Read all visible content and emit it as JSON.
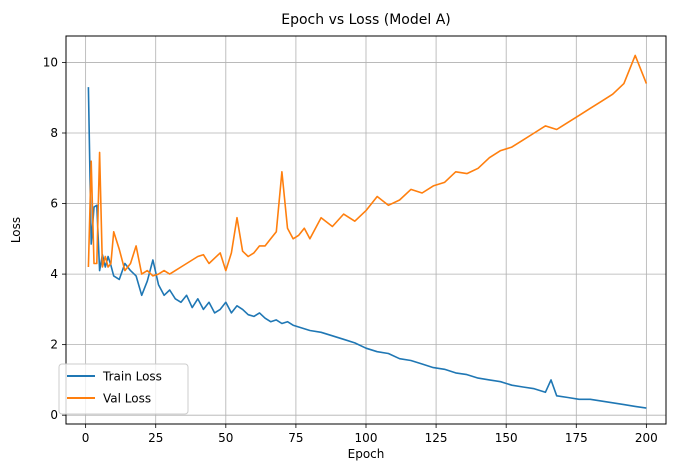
{
  "chart_data": {
    "type": "line",
    "title": "Epoch vs Loss (Model A)",
    "xlabel": "Epoch",
    "ylabel": "Loss",
    "xlim": [
      -7,
      207
    ],
    "ylim": [
      -0.25,
      10.75
    ],
    "xticks": [
      0,
      25,
      50,
      75,
      100,
      125,
      150,
      175,
      200
    ],
    "yticks": [
      0,
      2,
      4,
      6,
      8,
      10
    ],
    "grid": true,
    "legend_position": "lower-left",
    "series": [
      {
        "name": "Train Loss",
        "color": "#1f77b4",
        "x": [
          1,
          2,
          3,
          4,
          5,
          6,
          7,
          8,
          9,
          10,
          12,
          14,
          16,
          18,
          20,
          22,
          24,
          26,
          28,
          30,
          32,
          34,
          36,
          38,
          40,
          42,
          44,
          46,
          48,
          50,
          52,
          54,
          56,
          58,
          60,
          62,
          64,
          66,
          68,
          70,
          72,
          74,
          76,
          78,
          80,
          84,
          88,
          92,
          96,
          100,
          104,
          108,
          112,
          116,
          120,
          124,
          128,
          132,
          136,
          140,
          144,
          148,
          152,
          156,
          160,
          164,
          166,
          168,
          172,
          176,
          180,
          184,
          188,
          192,
          196,
          200
        ],
        "y": [
          9.3,
          4.85,
          5.9,
          5.95,
          4.1,
          4.55,
          4.2,
          4.5,
          4.25,
          3.95,
          3.85,
          4.3,
          4.1,
          3.95,
          3.4,
          3.8,
          4.4,
          3.7,
          3.4,
          3.55,
          3.3,
          3.2,
          3.4,
          3.05,
          3.3,
          3.0,
          3.2,
          2.9,
          3.0,
          3.2,
          2.9,
          3.1,
          3.0,
          2.85,
          2.8,
          2.9,
          2.75,
          2.65,
          2.7,
          2.6,
          2.65,
          2.55,
          2.5,
          2.45,
          2.4,
          2.35,
          2.25,
          2.15,
          2.05,
          1.9,
          1.8,
          1.75,
          1.6,
          1.55,
          1.45,
          1.35,
          1.3,
          1.2,
          1.15,
          1.05,
          1.0,
          0.95,
          0.85,
          0.8,
          0.75,
          0.65,
          1.0,
          0.55,
          0.5,
          0.45,
          0.45,
          0.4,
          0.35,
          0.3,
          0.25,
          0.2
        ]
      },
      {
        "name": "Val Loss",
        "color": "#ff7f0e",
        "x": [
          1,
          2,
          3,
          4,
          5,
          6,
          7,
          8,
          9,
          10,
          12,
          14,
          16,
          18,
          20,
          22,
          24,
          26,
          28,
          30,
          32,
          34,
          36,
          38,
          40,
          42,
          44,
          46,
          48,
          50,
          52,
          54,
          56,
          58,
          60,
          62,
          64,
          66,
          68,
          70,
          72,
          74,
          76,
          78,
          80,
          84,
          88,
          92,
          96,
          100,
          104,
          108,
          112,
          116,
          120,
          124,
          128,
          132,
          136,
          140,
          144,
          148,
          152,
          156,
          160,
          164,
          168,
          172,
          176,
          180,
          184,
          188,
          192,
          196,
          200
        ],
        "y": [
          4.2,
          7.2,
          4.3,
          4.3,
          7.45,
          4.2,
          4.5,
          4.2,
          4.3,
          5.2,
          4.7,
          4.1,
          4.3,
          4.8,
          4.0,
          4.1,
          3.95,
          4.0,
          4.1,
          4.0,
          4.1,
          4.2,
          4.3,
          4.4,
          4.5,
          4.55,
          4.3,
          4.45,
          4.6,
          4.1,
          4.6,
          5.6,
          4.65,
          4.5,
          4.6,
          4.8,
          4.8,
          5.0,
          5.2,
          6.9,
          5.3,
          5.0,
          5.1,
          5.3,
          5.0,
          5.6,
          5.35,
          5.7,
          5.5,
          5.8,
          6.2,
          5.95,
          6.1,
          6.4,
          6.3,
          6.5,
          6.6,
          6.9,
          6.85,
          7.0,
          7.3,
          7.5,
          7.6,
          7.8,
          8.0,
          8.2,
          8.1,
          8.3,
          8.5,
          8.7,
          8.9,
          9.1,
          9.4,
          10.2,
          9.4
        ]
      }
    ]
  }
}
